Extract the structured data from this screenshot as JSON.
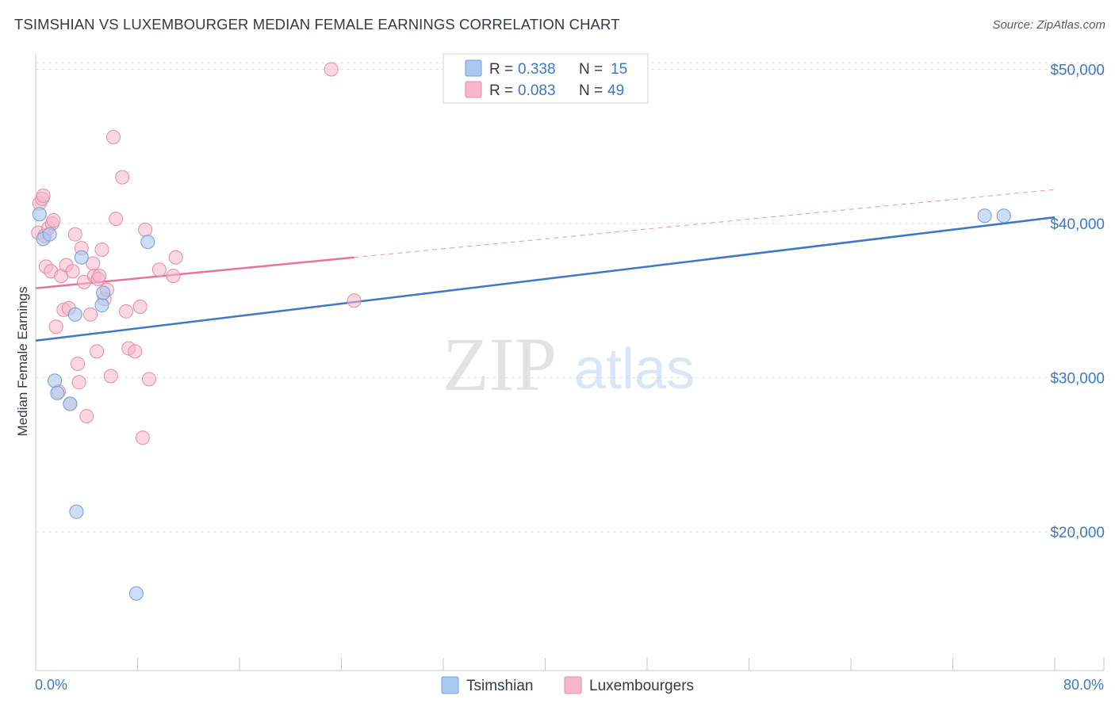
{
  "header": {
    "title": "TSIMSHIAN VS LUXEMBOURGER MEDIAN FEMALE EARNINGS CORRELATION CHART",
    "source": "Source: ZipAtlas.com"
  },
  "watermark": {
    "zip": "ZIP",
    "atlas": "atlas"
  },
  "legend": {
    "r_label": "R =",
    "n_label": "N =",
    "rows": [
      {
        "r": "0.338",
        "n": "15",
        "color": "#a8c8f0"
      },
      {
        "r": "0.083",
        "n": "49",
        "color": "#f7b6c9"
      }
    ]
  },
  "bottom_legend": [
    {
      "label": "Tsimshian",
      "color": "#a8c8f0"
    },
    {
      "label": "Luxembourgers",
      "color": "#f7b6c9"
    }
  ],
  "colors": {
    "tsimshian_fill": "#a8c8f0",
    "tsimshian_stroke": "#6f9fd8",
    "tsimshian_line": "#3d78c8",
    "lux_fill": "#f7b6c9",
    "lux_stroke": "#e58aa6",
    "lux_line": "#e8739a",
    "grid": "#e3e3e3",
    "axis_label": "#3d78c8"
  },
  "chart_data": {
    "type": "scatter",
    "title": "TSIMSHIAN VS LUXEMBOURGER MEDIAN FEMALE EARNINGS CORRELATION CHART",
    "xlabel": "",
    "ylabel": "Median Female Earnings",
    "xlim": [
      0,
      80
    ],
    "ylim": [
      11000,
      51000
    ],
    "x_tick_labels": [
      "0.0%",
      "80.0%"
    ],
    "y_ticks": [
      20000,
      30000,
      40000,
      50000
    ],
    "y_tick_labels": [
      "$20,000",
      "$30,000",
      "$40,000",
      "$50,000"
    ],
    "grid": true,
    "legend_position": "top-center",
    "series": [
      {
        "name": "Tsimshian",
        "r": 0.338,
        "n": 15,
        "points": [
          [
            0.3,
            40600
          ],
          [
            0.6,
            39000
          ],
          [
            1.1,
            39300
          ],
          [
            1.5,
            29800
          ],
          [
            1.7,
            29000
          ],
          [
            2.7,
            28300
          ],
          [
            3.1,
            34100
          ],
          [
            3.2,
            21300
          ],
          [
            3.6,
            37800
          ],
          [
            5.2,
            34700
          ],
          [
            5.3,
            35500
          ],
          [
            7.9,
            16000
          ],
          [
            8.8,
            38800
          ],
          [
            74.5,
            40500
          ],
          [
            76.0,
            40500
          ]
        ],
        "trend": {
          "x": [
            0,
            80
          ],
          "y": [
            32400,
            40400
          ]
        }
      },
      {
        "name": "Luxembourgers",
        "r": 0.083,
        "n": 49,
        "points": [
          [
            0.2,
            39400
          ],
          [
            0.3,
            41300
          ],
          [
            0.5,
            41600
          ],
          [
            0.6,
            41800
          ],
          [
            0.7,
            39200
          ],
          [
            0.8,
            37200
          ],
          [
            1.0,
            39700
          ],
          [
            1.2,
            36900
          ],
          [
            1.3,
            40000
          ],
          [
            1.4,
            40200
          ],
          [
            1.6,
            33300
          ],
          [
            1.8,
            29100
          ],
          [
            2.0,
            36600
          ],
          [
            2.2,
            34400
          ],
          [
            2.4,
            37300
          ],
          [
            2.6,
            34500
          ],
          [
            2.7,
            28300
          ],
          [
            2.9,
            36900
          ],
          [
            3.1,
            39300
          ],
          [
            3.3,
            30900
          ],
          [
            3.4,
            29700
          ],
          [
            3.6,
            38400
          ],
          [
            3.8,
            36200
          ],
          [
            4.0,
            27500
          ],
          [
            4.3,
            34100
          ],
          [
            4.5,
            37400
          ],
          [
            4.6,
            36600
          ],
          [
            4.8,
            31700
          ],
          [
            4.9,
            36400
          ],
          [
            5.0,
            36600
          ],
          [
            5.2,
            38300
          ],
          [
            5.4,
            35100
          ],
          [
            5.6,
            35700
          ],
          [
            5.9,
            30100
          ],
          [
            6.3,
            40300
          ],
          [
            6.1,
            45600
          ],
          [
            6.8,
            43000
          ],
          [
            7.1,
            34300
          ],
          [
            7.3,
            31900
          ],
          [
            7.8,
            31700
          ],
          [
            8.2,
            34600
          ],
          [
            8.4,
            26100
          ],
          [
            8.6,
            39600
          ],
          [
            8.9,
            29900
          ],
          [
            9.7,
            37000
          ],
          [
            10.8,
            36600
          ],
          [
            11.0,
            37800
          ],
          [
            23.2,
            50000
          ],
          [
            25.0,
            35000
          ]
        ],
        "trend": {
          "x": [
            0,
            25
          ],
          "y": [
            35800,
            37800
          ]
        },
        "trend_extended": {
          "x": [
            25,
            80
          ],
          "y": [
            37800,
            42200
          ]
        }
      }
    ]
  }
}
